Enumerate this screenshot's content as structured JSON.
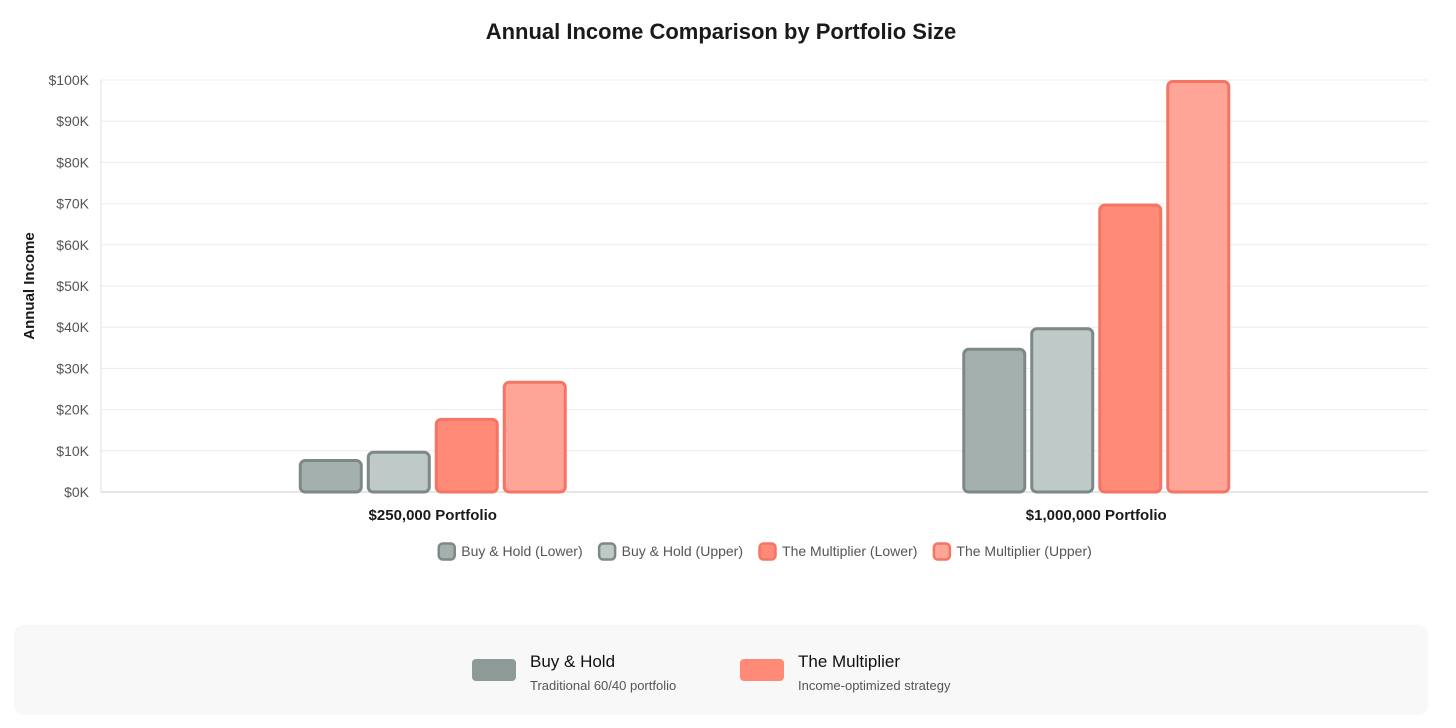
{
  "chart_data": {
    "type": "bar",
    "title": "Annual Income Comparison by Portfolio Size",
    "xlabel": "",
    "ylabel": "Annual Income",
    "categories": [
      "$250,000 Portfolio",
      "$1,000,000 Portfolio"
    ],
    "ylim": [
      0,
      100000
    ],
    "ytick_labels": [
      "$0K",
      "$10K",
      "$20K",
      "$30K",
      "$40K",
      "$50K",
      "$60K",
      "$70K",
      "$80K",
      "$90K",
      "$100K"
    ],
    "grid": true,
    "legend_position": "bottom",
    "series": [
      {
        "name": "Buy & Hold (Lower)",
        "values": [
          8000,
          35000
        ],
        "fill": "#a4b0ae",
        "stroke": "#7d8987"
      },
      {
        "name": "Buy & Hold (Upper)",
        "values": [
          10000,
          40000
        ],
        "fill": "#bfc9c7",
        "stroke": "#7d8987"
      },
      {
        "name": "The Multiplier (Lower)",
        "values": [
          18000,
          70000
        ],
        "fill": "#ff8a78",
        "stroke": "#f47563"
      },
      {
        "name": "The Multiplier (Upper)",
        "values": [
          27000,
          100000
        ],
        "fill": "#ffa597",
        "stroke": "#f47563"
      }
    ]
  },
  "summary": {
    "items": [
      {
        "name": "Buy & Hold",
        "description": "Traditional 60/40 portfolio",
        "color": "#8e9a98"
      },
      {
        "name": "The Multiplier",
        "description": "Income-optimized strategy",
        "color": "#ff8a78"
      }
    ]
  }
}
